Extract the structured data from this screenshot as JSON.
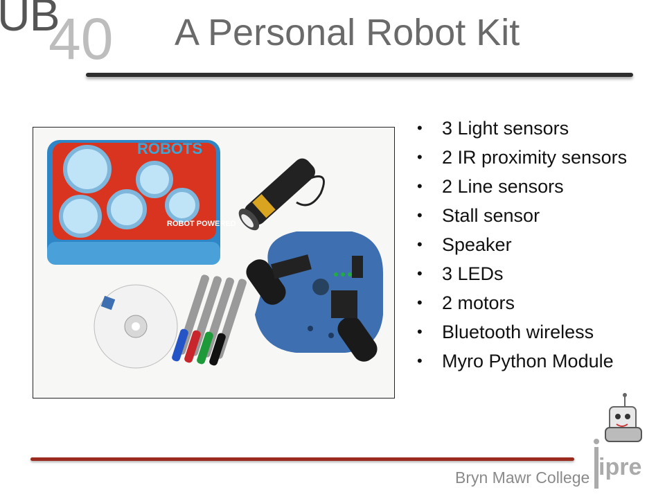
{
  "header": {
    "logo_ub": "UB",
    "logo_number": "40",
    "title": "A Personal Robot Kit"
  },
  "photo": {
    "lunchbox_brand": "ROBOTS",
    "lunchbox_tag": "ROBOT POWERED"
  },
  "features": [
    "3 Light sensors",
    "2 IR proximity sensors",
    "2 Line sensors",
    "Stall sensor",
    "Speaker",
    "3 LEDs",
    "2 motors",
    "Bluetooth wireless",
    "Myro Python Module"
  ],
  "footer": {
    "institution": "Bryn Mawr College",
    "logo_text": "ipre"
  },
  "colors": {
    "title": "#6a6a6a",
    "accent_rule": "#9a2b1e",
    "robot_blue": "#3e6fb0"
  }
}
